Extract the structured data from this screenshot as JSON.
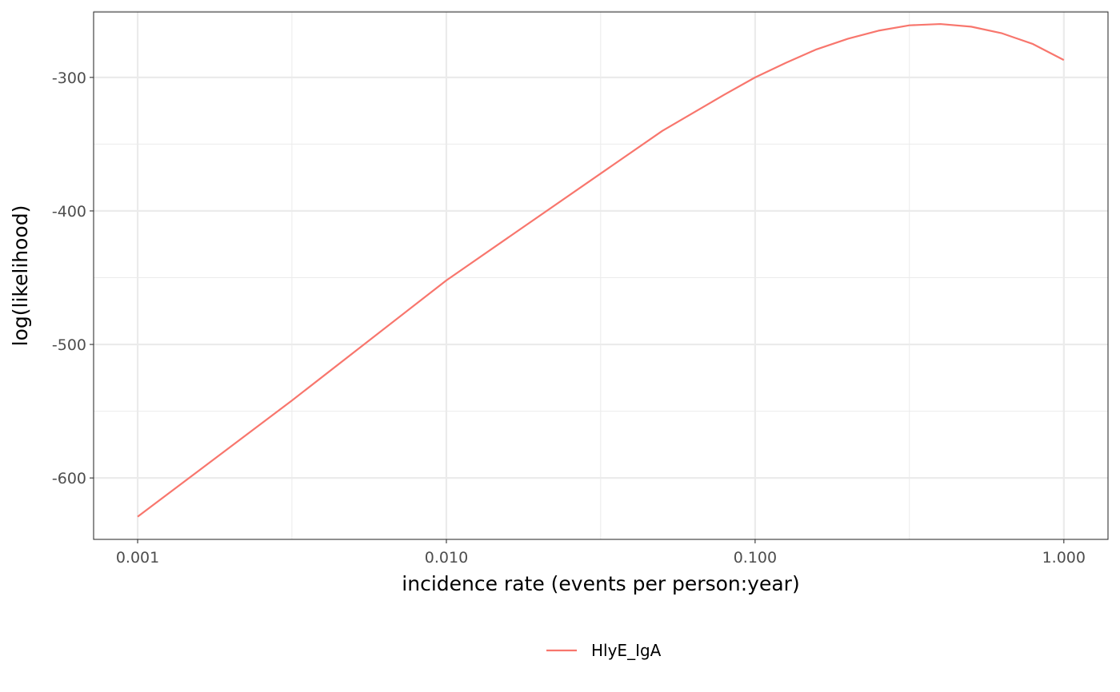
{
  "chart_data": {
    "type": "line",
    "title": "",
    "xlabel": "incidence rate (events per person:year)",
    "ylabel": "log(likelihood)",
    "x_scale": "log10",
    "xlim": [
      0.00072,
      1.39
    ],
    "ylim": [
      -646,
      -251
    ],
    "x_ticks": [
      {
        "value": 0.001,
        "label": "0.001"
      },
      {
        "value": 0.01,
        "label": "0.010"
      },
      {
        "value": 0.1,
        "label": "0.100"
      },
      {
        "value": 1,
        "label": "1.000"
      }
    ],
    "x_minor_ticks": [
      0.00316,
      0.0316,
      0.316
    ],
    "y_ticks": [
      {
        "value": -300,
        "label": "-300"
      },
      {
        "value": -400,
        "label": "-400"
      },
      {
        "value": -500,
        "label": "-500"
      },
      {
        "value": -600,
        "label": "-600"
      }
    ],
    "y_minor_ticks": [
      -250,
      -350,
      -450,
      -550
    ],
    "grid": true,
    "legend_position": "bottom",
    "series": [
      {
        "name": "HlyE_IgA",
        "color": "#F8766D",
        "x": [
          0.001,
          0.00316,
          0.01,
          0.0316,
          0.0501,
          0.0794,
          0.1,
          0.126,
          0.158,
          0.2,
          0.251,
          0.316,
          0.398,
          0.501,
          0.631,
          0.794,
          1.0
        ],
        "y": [
          -629,
          -542,
          -452,
          -372,
          -340,
          -313,
          -300,
          -289,
          -279,
          -271,
          -265,
          -261,
          -260,
          -262,
          -267,
          -275,
          -287
        ]
      }
    ]
  }
}
